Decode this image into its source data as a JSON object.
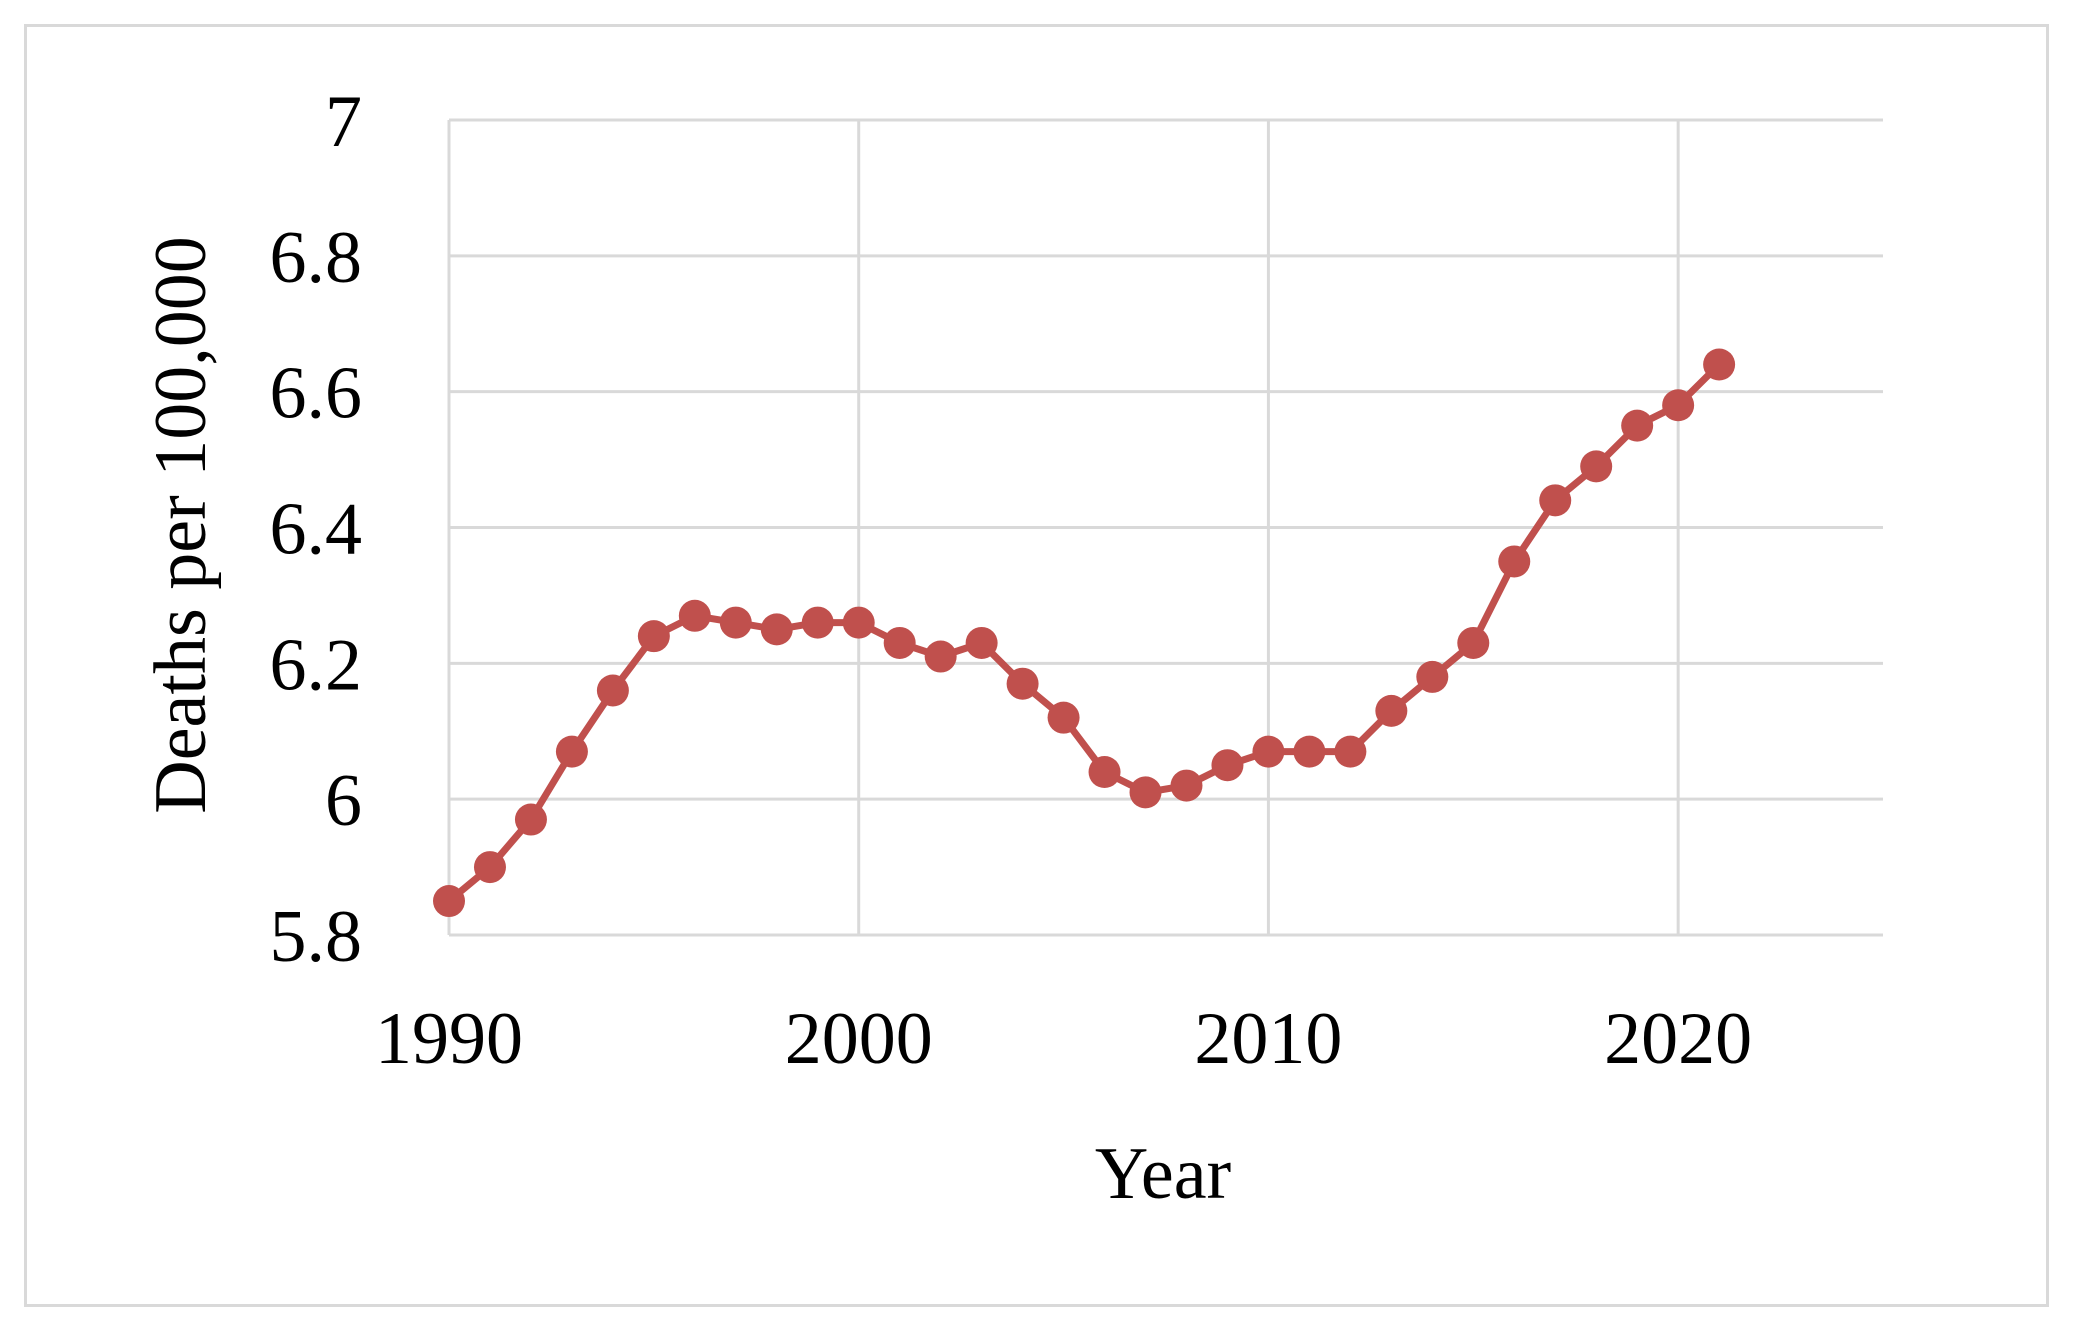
{
  "chart_data": {
    "type": "line",
    "title": "",
    "xlabel": "Year",
    "ylabel": "Deaths per 100,000",
    "xlim": [
      1990,
      2025
    ],
    "ylim": [
      5.8,
      7.0
    ],
    "x_ticks": [
      1990,
      2000,
      2010,
      2020
    ],
    "x_tick_labels": [
      "1990",
      "2000",
      "2010",
      "2020"
    ],
    "y_ticks": [
      5.8,
      6.0,
      6.2,
      6.4,
      6.6,
      6.8,
      7.0
    ],
    "y_tick_labels": [
      "5.8",
      "6",
      "6.2",
      "6.4",
      "6.6",
      "6.8",
      "7"
    ],
    "grid": true,
    "legend": "none",
    "series": [
      {
        "color": "#c0504d",
        "marker": "circle",
        "x": [
          1990,
          1991,
          1992,
          1993,
          1994,
          1995,
          1996,
          1997,
          1998,
          1999,
          2000,
          2001,
          2002,
          2003,
          2004,
          2005,
          2006,
          2007,
          2008,
          2009,
          2010,
          2011,
          2012,
          2013,
          2014,
          2015,
          2016,
          2017,
          2018,
          2019,
          2020,
          2021
        ],
        "values": [
          5.85,
          5.9,
          5.97,
          6.07,
          6.16,
          6.24,
          6.27,
          6.26,
          6.25,
          6.26,
          6.26,
          6.23,
          6.21,
          6.23,
          6.17,
          6.12,
          6.04,
          6.01,
          6.02,
          6.05,
          6.07,
          6.07,
          6.07,
          6.13,
          6.18,
          6.23,
          6.35,
          6.44,
          6.49,
          6.55,
          6.58,
          6.64
        ]
      }
    ]
  },
  "colors": {
    "gridline": "#d9d9d9",
    "frame_border": "#d9d9d9",
    "series": "#c0504d"
  }
}
